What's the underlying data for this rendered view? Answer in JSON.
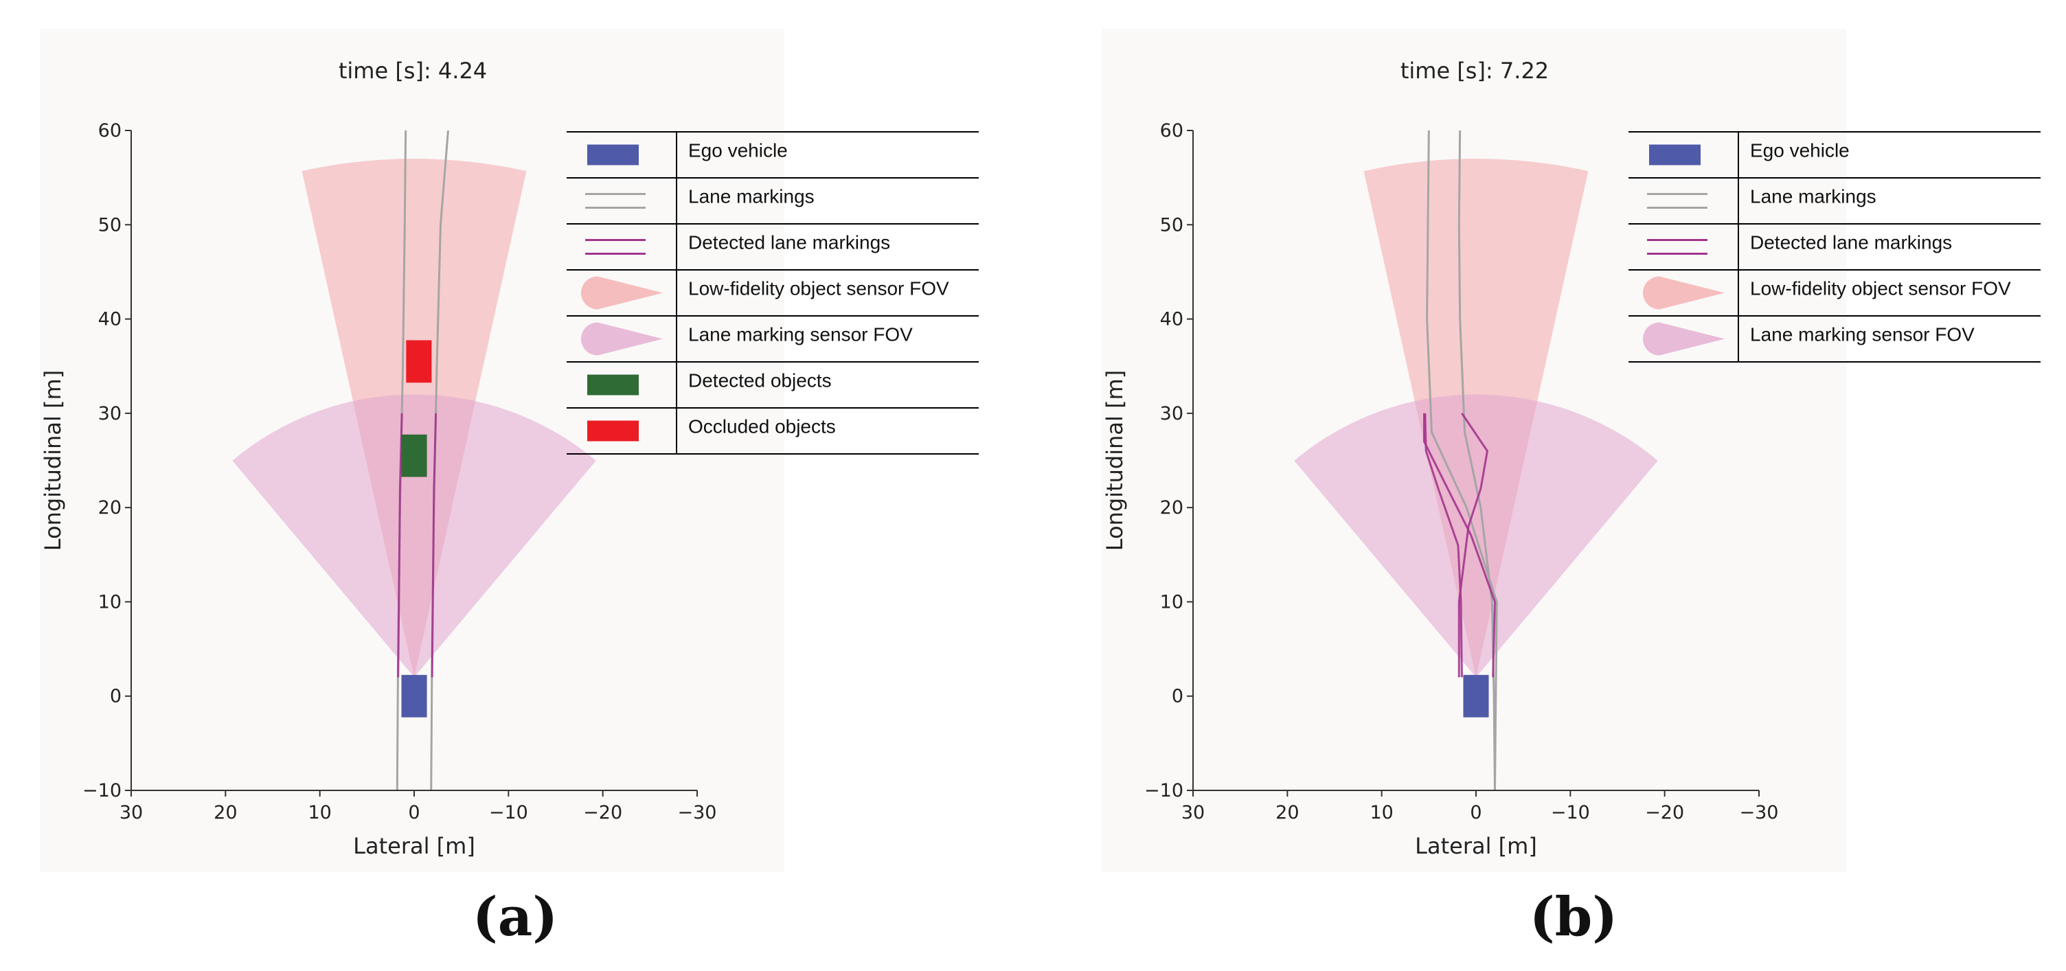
{
  "chart_data": [
    {
      "type": "scatter",
      "panel": "a",
      "title": "time [s]: 4.24",
      "xlabel": "Lateral [m]",
      "ylabel": "Longitudinal [m]",
      "xlim": [
        30,
        -30
      ],
      "ylim": [
        -10,
        60
      ],
      "xticks": [
        30,
        20,
        10,
        0,
        -10,
        -20,
        -30
      ],
      "yticks": [
        -10,
        0,
        10,
        20,
        30,
        40,
        50,
        60
      ],
      "xtick_labels": [
        "30",
        "20",
        "10",
        "0",
        "−10",
        "−20",
        "−30"
      ],
      "ytick_labels": [
        "−10",
        "0",
        "10",
        "20",
        "30",
        "40",
        "50",
        "60"
      ],
      "caption": "(a)",
      "ego_vehicle": {
        "x": 0,
        "y": 0,
        "width": 2,
        "length": 4.5
      },
      "object_sensor_fov": {
        "range_m": 55,
        "half_angle_deg": 12.5,
        "origin": [
          0,
          2
        ]
      },
      "lane_sensor_fov": {
        "range_m": 30,
        "half_angle_deg": 40,
        "origin": [
          0,
          2
        ]
      },
      "lane_markings": [
        {
          "points": [
            [
              1.8,
              -10
            ],
            [
              1.7,
              5
            ],
            [
              1.5,
              20
            ],
            [
              1.2,
              35
            ],
            [
              1.0,
              50
            ],
            [
              0.9,
              60
            ]
          ]
        },
        {
          "points": [
            [
              -1.8,
              -10
            ],
            [
              -1.9,
              5
            ],
            [
              -2.1,
              20
            ],
            [
              -2.4,
              35
            ],
            [
              -2.8,
              50
            ],
            [
              -3.6,
              60
            ]
          ]
        }
      ],
      "detected_lane_markings": [
        {
          "points": [
            [
              1.7,
              2
            ],
            [
              1.6,
              12
            ],
            [
              1.5,
              22
            ],
            [
              1.3,
              30
            ]
          ]
        },
        {
          "points": [
            [
              -1.9,
              2
            ],
            [
              -2.0,
              12
            ],
            [
              -2.1,
              22
            ],
            [
              -2.3,
              30
            ]
          ]
        }
      ],
      "detected_objects": [
        {
          "x": 0,
          "y": 25.5,
          "width": 2,
          "length": 4.5
        }
      ],
      "occluded_objects": [
        {
          "x": -0.5,
          "y": 35.5,
          "width": 2,
          "length": 4.5
        }
      ],
      "legend": [
        {
          "key": "ego",
          "label": "Ego vehicle"
        },
        {
          "key": "lane",
          "label": "Lane markings"
        },
        {
          "key": "detlane",
          "label": "Detected lane markings"
        },
        {
          "key": "objfov",
          "label": "Low-fidelity object sensor FOV"
        },
        {
          "key": "lanefov",
          "label": "Lane marking sensor FOV"
        },
        {
          "key": "detobj",
          "label": "Detected objects"
        },
        {
          "key": "occobj",
          "label": "Occluded objects"
        }
      ]
    },
    {
      "type": "scatter",
      "panel": "b",
      "title": "time [s]: 7.22",
      "xlabel": "Lateral [m]",
      "ylabel": "Longitudinal [m]",
      "xlim": [
        30,
        -30
      ],
      "ylim": [
        -10,
        60
      ],
      "xticks": [
        30,
        20,
        10,
        0,
        -10,
        -20,
        -30
      ],
      "yticks": [
        -10,
        0,
        10,
        20,
        30,
        40,
        50,
        60
      ],
      "xtick_labels": [
        "30",
        "20",
        "10",
        "0",
        "−10",
        "−20",
        "−30"
      ],
      "ytick_labels": [
        "−10",
        "0",
        "10",
        "20",
        "30",
        "40",
        "50",
        "60"
      ],
      "caption": "(b)",
      "ego_vehicle": {
        "x": 0,
        "y": 0,
        "width": 2,
        "length": 4.5
      },
      "object_sensor_fov": {
        "range_m": 55,
        "half_angle_deg": 12.5,
        "origin": [
          0,
          2
        ]
      },
      "lane_sensor_fov": {
        "range_m": 30,
        "half_angle_deg": 40,
        "origin": [
          0,
          2
        ]
      },
      "lane_markings": [
        {
          "points": [
            [
              -2.0,
              -10
            ],
            [
              -1.9,
              0
            ],
            [
              -1.7,
              10
            ],
            [
              -0.5,
              20
            ],
            [
              1.2,
              28
            ],
            [
              1.7,
              40
            ],
            [
              1.8,
              50
            ],
            [
              1.7,
              60
            ]
          ]
        },
        {
          "points": [
            [
              -2.0,
              -10
            ],
            [
              -2.1,
              0
            ],
            [
              -2.2,
              10
            ],
            [
              1.0,
              20
            ],
            [
              4.7,
              28
            ],
            [
              5.2,
              40
            ],
            [
              5.1,
              50
            ],
            [
              5.0,
              60
            ]
          ]
        }
      ],
      "detected_lane_markings": [
        {
          "points": [
            [
              1.8,
              2
            ],
            [
              1.8,
              10
            ],
            [
              0.8,
              18
            ],
            [
              -0.5,
              22
            ],
            [
              -1.2,
              26
            ],
            [
              1.5,
              30
            ]
          ]
        },
        {
          "points": [
            [
              -1.8,
              2
            ],
            [
              -2.0,
              10
            ],
            [
              0.5,
              17
            ],
            [
              3.5,
              23
            ],
            [
              5.5,
              27
            ],
            [
              5.5,
              30
            ]
          ]
        },
        {
          "points": [
            [
              1.5,
              2
            ],
            [
              1.6,
              10
            ],
            [
              1.9,
              16
            ],
            [
              4.0,
              22
            ],
            [
              5.3,
              26
            ],
            [
              5.4,
              30
            ]
          ]
        }
      ],
      "detected_objects": [],
      "occluded_objects": [],
      "legend": [
        {
          "key": "ego",
          "label": "Ego vehicle"
        },
        {
          "key": "lane",
          "label": "Lane markings"
        },
        {
          "key": "detlane",
          "label": "Detected lane markings"
        },
        {
          "key": "objfov",
          "label": "Low-fidelity object sensor FOV"
        },
        {
          "key": "lanefov",
          "label": "Lane marking sensor FOV"
        }
      ]
    }
  ],
  "colors": {
    "background": "#faf9f8",
    "axis": "#333333",
    "ego": "#4f5aa8",
    "lane": "#a5a5a5",
    "detected_lane": "#a3358f",
    "object_fov": "#f4a8ab",
    "lane_fov": "#e2a6ce",
    "detected_object": "#2f6b34",
    "occluded_object": "#ec1c24"
  }
}
